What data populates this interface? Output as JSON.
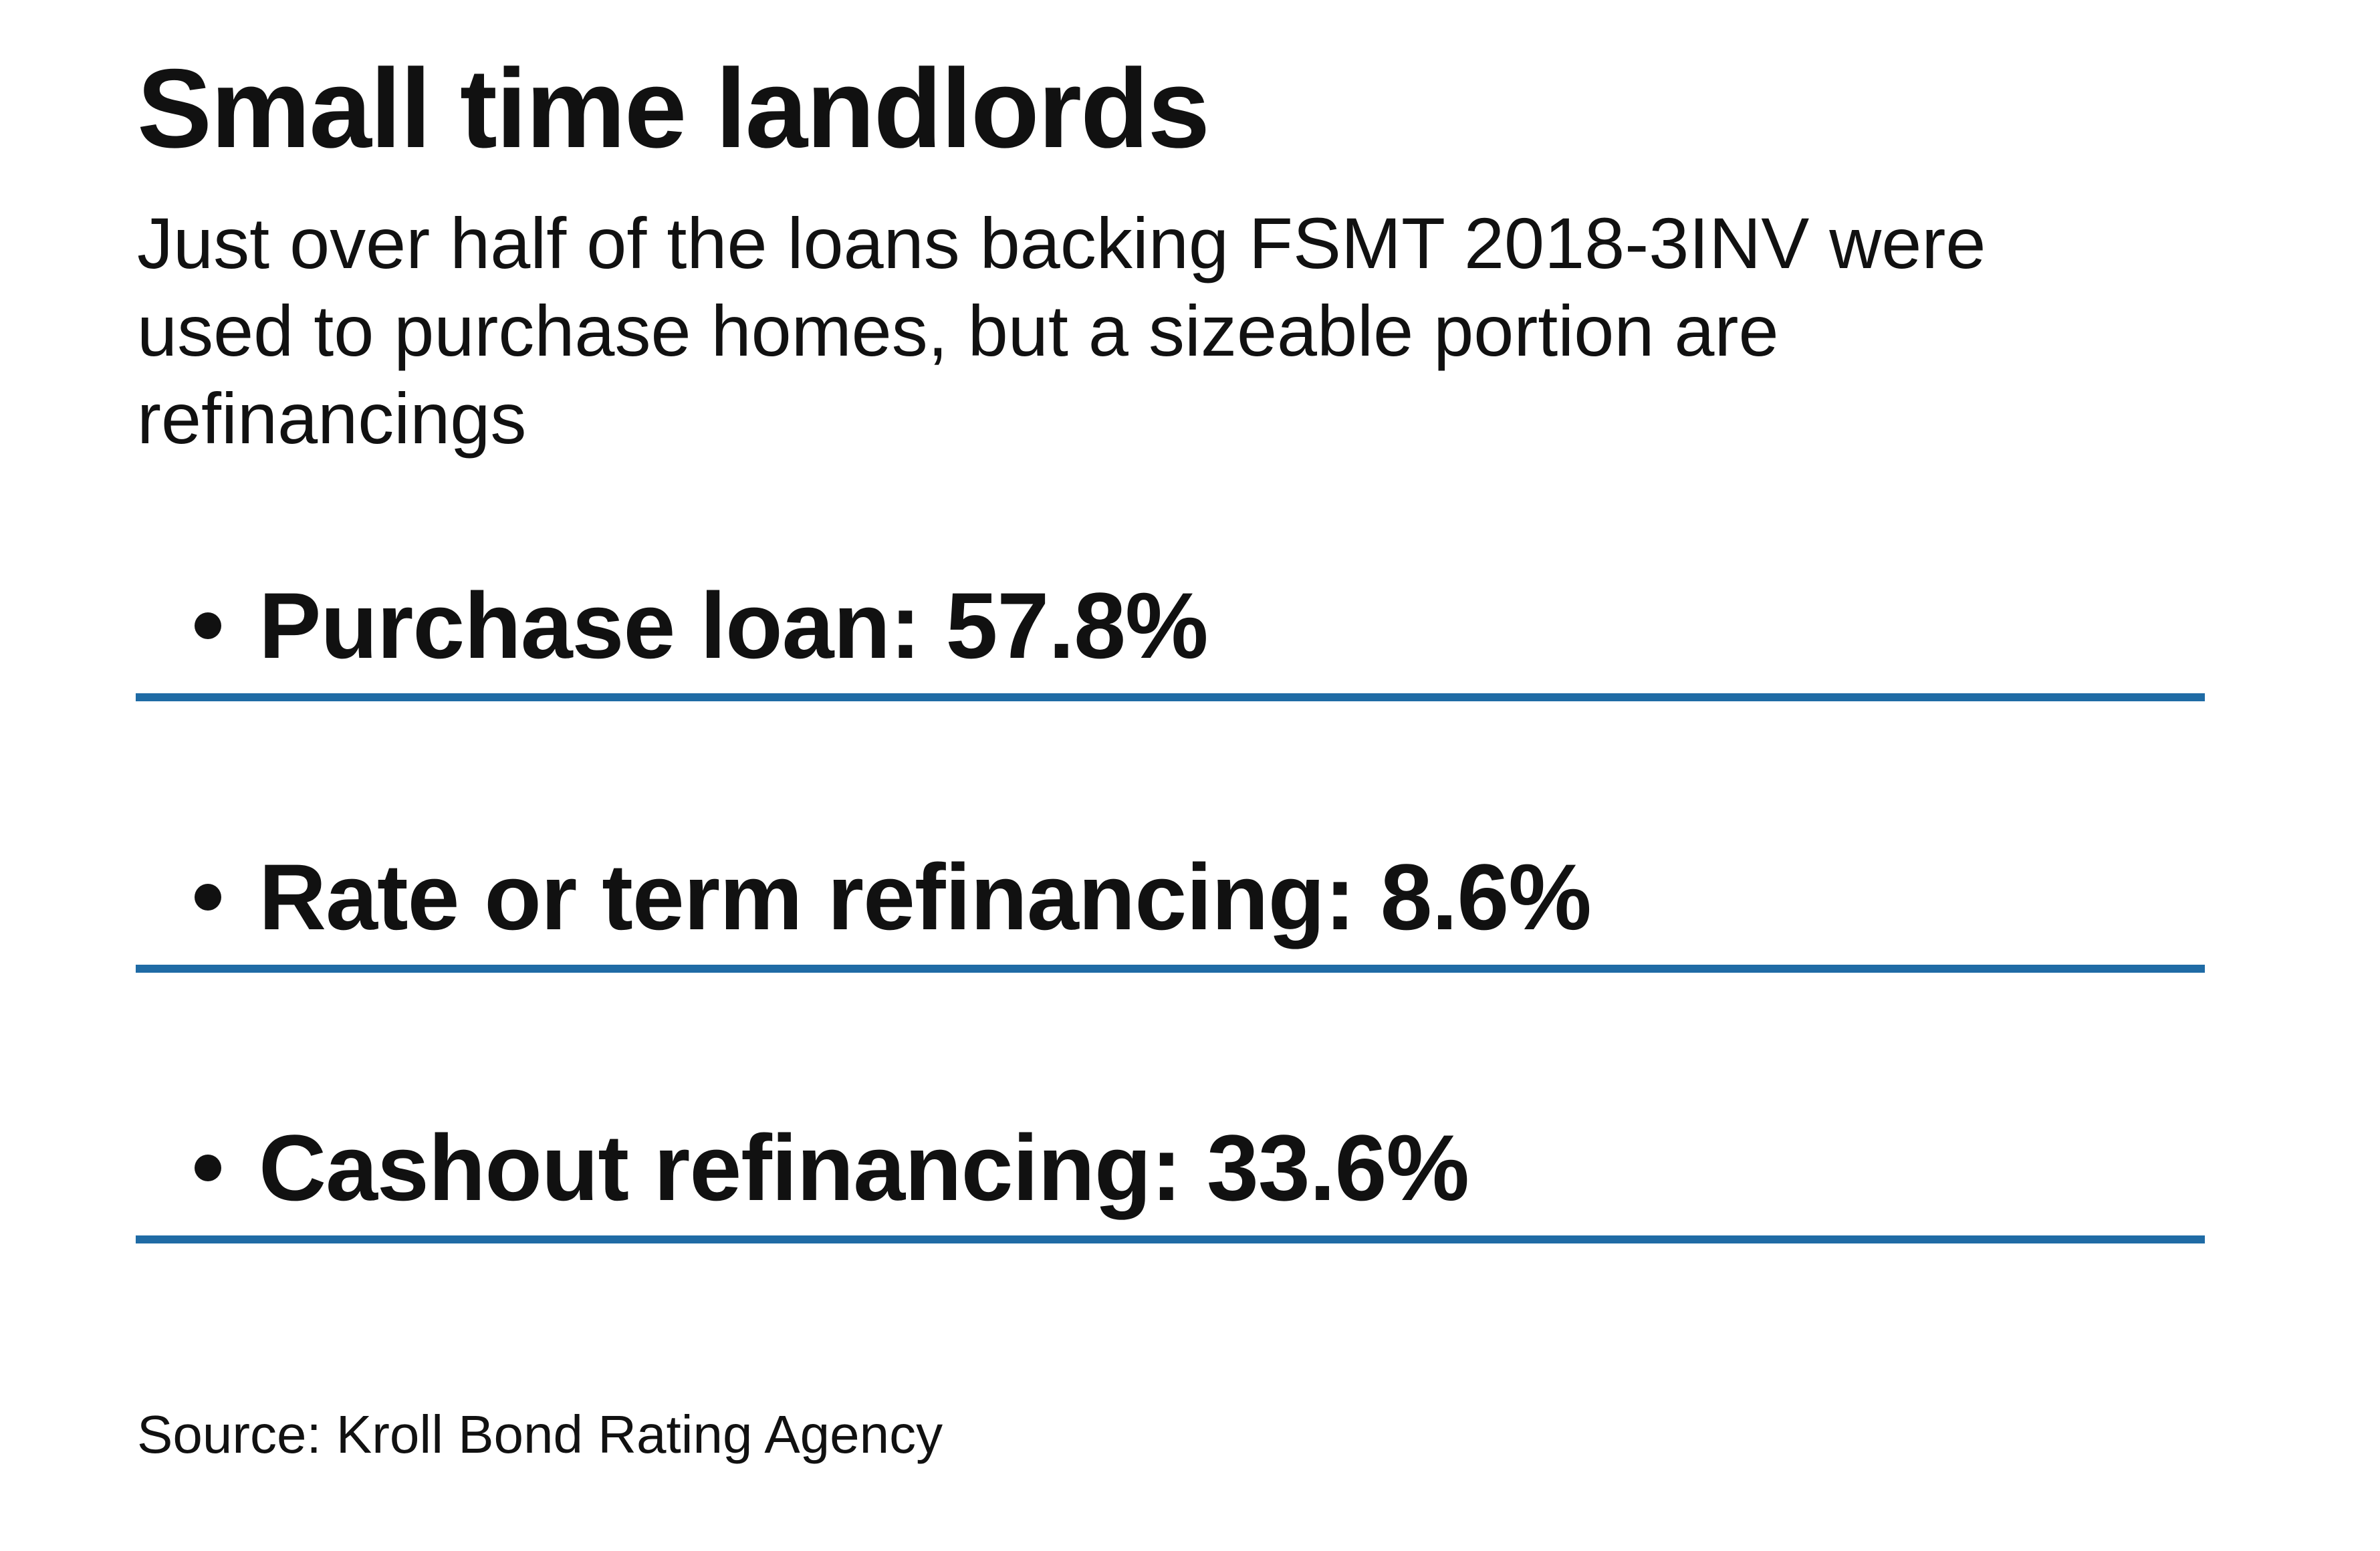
{
  "colors": {
    "accent_blue": "#1F6BA5",
    "text": "#111111",
    "background": "#FFFFFF"
  },
  "header": {
    "title": "Small time landlords",
    "subtitle_lines": [
      "Just over half of the loans backing FSMT 2018-3INV were",
      "used to purchase homes, but a sizeable portion are",
      "refinancings"
    ]
  },
  "items": [
    {
      "label": "Purchase loan",
      "value": "57.8%",
      "text": "Purchase loan: 57.8%"
    },
    {
      "label": "Rate or term refinancing",
      "value": "8.6%",
      "text": "Rate or term refinancing: 8.6%"
    },
    {
      "label": "Cashout refinancing",
      "value": "33.6%",
      "text": "Cashout refinancing: 33.6%"
    }
  ],
  "footer": {
    "source": "Source: Kroll Bond Rating Agency"
  },
  "chart_data": {
    "type": "table",
    "title": "Small time landlords",
    "subtitle": "Just over half of the loans backing FSMT 2018-3INV were used to purchase homes, but a sizeable portion are refinancings",
    "categories": [
      "Purchase loan",
      "Rate or term refinancing",
      "Cashout refinancing"
    ],
    "values": [
      57.8,
      8.6,
      33.6
    ],
    "unit": "%",
    "source": "Source: Kroll Bond Rating Agency",
    "accent_color": "#1F6BA5",
    "layout": "bulleted list with blue rule under each entry"
  }
}
